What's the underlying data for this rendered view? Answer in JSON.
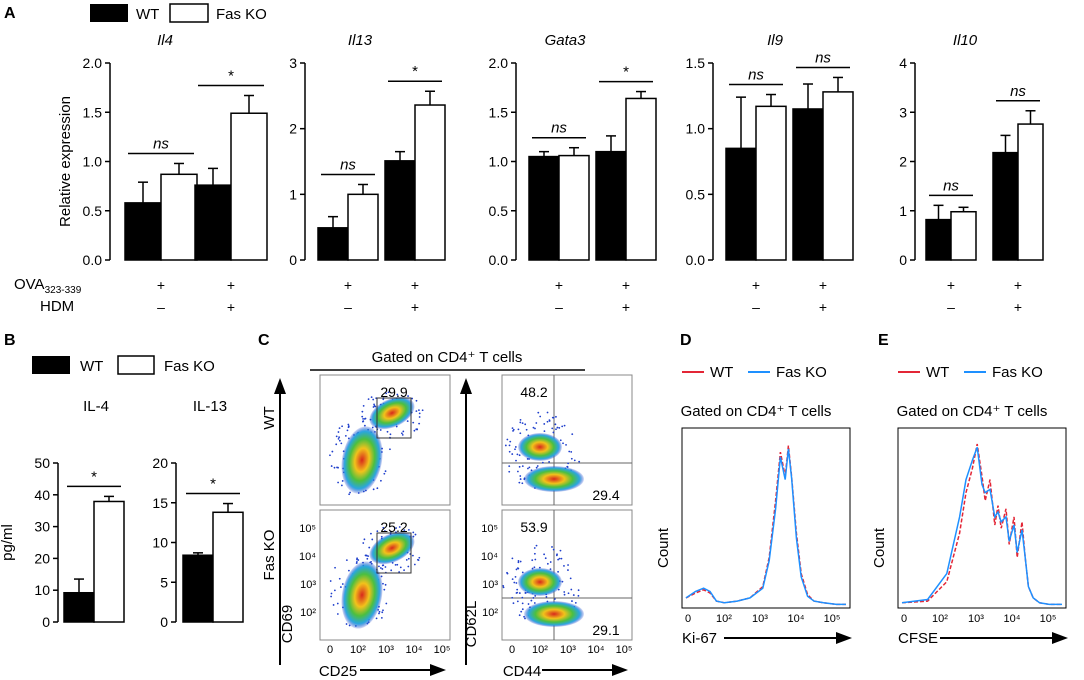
{
  "panels": {
    "A": "A",
    "B": "B",
    "C": "C",
    "D": "D",
    "E": "E"
  },
  "legend_bar": {
    "wt": "WT",
    "ko": "Fas KO"
  },
  "legend_line": {
    "wt": "WT",
    "ko": "Fas KO",
    "wt_color": "#e32636",
    "ko_color": "#1e90ff"
  },
  "colors": {
    "wt_bar": "#000000",
    "ko_bar": "#ffffff",
    "density_low": "#1f3fcc",
    "density_high": "#d8281c"
  },
  "panel_a_conditions": {
    "row1_label": "OVA",
    "row1_sub": "323-339",
    "row2_label": "HDM",
    "row1_marks": [
      "+",
      "+"
    ],
    "row2_marks": [
      "–",
      "+"
    ]
  },
  "chart_data": [
    {
      "type": "bar",
      "panel": "A",
      "title": "Il4",
      "ylabel": "Relative expression",
      "ylim": [
        0,
        2.0
      ],
      "ticks": [
        "0.0",
        "0.5",
        "1.0",
        "1.5",
        "2.0"
      ],
      "tick_values": [
        0,
        0.5,
        1.0,
        1.5,
        2.0
      ],
      "groups": [
        "OVA only",
        "OVA + HDM"
      ],
      "series": [
        {
          "name": "WT",
          "values": [
            0.58,
            0.76
          ],
          "errors": [
            0.21,
            0.17
          ]
        },
        {
          "name": "Fas KO",
          "values": [
            0.87,
            1.49
          ],
          "errors": [
            0.11,
            0.18
          ]
        }
      ],
      "significance": [
        "ns",
        "*"
      ]
    },
    {
      "type": "bar",
      "panel": "A",
      "title": "Il13",
      "ylabel": "",
      "ylim": [
        0,
        3
      ],
      "ticks": [
        "0",
        "1",
        "2",
        "3"
      ],
      "tick_values": [
        0,
        1,
        2,
        3
      ],
      "groups": [
        "OVA only",
        "OVA + HDM"
      ],
      "series": [
        {
          "name": "WT",
          "values": [
            0.49,
            1.51
          ],
          "errors": [
            0.17,
            0.14
          ]
        },
        {
          "name": "Fas KO",
          "values": [
            1.0,
            2.36
          ],
          "errors": [
            0.15,
            0.21
          ]
        }
      ],
      "significance": [
        "ns",
        "*"
      ]
    },
    {
      "type": "bar",
      "panel": "A",
      "title": "Gata3",
      "ylabel": "",
      "ylim": [
        0,
        2.0
      ],
      "ticks": [
        "0.0",
        "0.5",
        "1.0",
        "1.5",
        "2.0"
      ],
      "tick_values": [
        0,
        0.5,
        1.0,
        1.5,
        2.0
      ],
      "groups": [
        "OVA only",
        "OVA + HDM"
      ],
      "series": [
        {
          "name": "WT",
          "values": [
            1.05,
            1.1
          ],
          "errors": [
            0.05,
            0.16
          ]
        },
        {
          "name": "Fas KO",
          "values": [
            1.06,
            1.64
          ],
          "errors": [
            0.08,
            0.07
          ]
        }
      ],
      "significance": [
        "ns",
        "*"
      ]
    },
    {
      "type": "bar",
      "panel": "A",
      "title": "Il9",
      "ylabel": "",
      "ylim": [
        0,
        1.5
      ],
      "ticks": [
        "0.0",
        "0.5",
        "1.0",
        "1.5"
      ],
      "tick_values": [
        0,
        0.5,
        1.0,
        1.5
      ],
      "groups": [
        "OVA only",
        "OVA + HDM"
      ],
      "series": [
        {
          "name": "WT",
          "values": [
            0.85,
            1.15
          ],
          "errors": [
            0.39,
            0.19
          ]
        },
        {
          "name": "Fas KO",
          "values": [
            1.17,
            1.28
          ],
          "errors": [
            0.09,
            0.11
          ]
        }
      ],
      "significance": [
        "ns",
        "ns"
      ]
    },
    {
      "type": "bar",
      "panel": "A",
      "title": "Il10",
      "ylabel": "",
      "ylim": [
        0,
        4
      ],
      "ticks": [
        "0",
        "1",
        "2",
        "3",
        "4"
      ],
      "tick_values": [
        0,
        1,
        2,
        3,
        4
      ],
      "groups": [
        "OVA only",
        "OVA + HDM"
      ],
      "series": [
        {
          "name": "WT",
          "values": [
            0.82,
            2.18
          ],
          "errors": [
            0.29,
            0.35
          ]
        },
        {
          "name": "Fas KO",
          "values": [
            0.98,
            2.76
          ],
          "errors": [
            0.09,
            0.27
          ]
        }
      ],
      "significance": [
        "ns",
        "ns"
      ]
    },
    {
      "type": "bar",
      "panel": "B",
      "title": "IL-4",
      "ylabel": "pg/ml",
      "ylim": [
        0,
        50
      ],
      "ticks": [
        "0",
        "10",
        "20",
        "30",
        "40",
        "50"
      ],
      "tick_values": [
        0,
        10,
        20,
        30,
        40,
        50
      ],
      "series": [
        {
          "name": "WT",
          "values": [
            9.2
          ],
          "errors": [
            4.3
          ]
        },
        {
          "name": "Fas KO",
          "values": [
            37.9
          ],
          "errors": [
            1.6
          ]
        }
      ],
      "significance": [
        "*"
      ]
    },
    {
      "type": "bar",
      "panel": "B",
      "title": "IL-13",
      "ylabel": "",
      "ylim": [
        0,
        20
      ],
      "ticks": [
        "0",
        "5",
        "10",
        "15",
        "20"
      ],
      "tick_values": [
        0,
        5,
        10,
        15,
        20
      ],
      "series": [
        {
          "name": "WT",
          "values": [
            8.4
          ],
          "errors": [
            0.3
          ]
        },
        {
          "name": "Fas KO",
          "values": [
            13.8
          ],
          "errors": [
            1.1
          ]
        }
      ],
      "significance": [
        "*"
      ]
    },
    {
      "type": "scatter",
      "panel": "C",
      "subtype": "flow-cytometry density",
      "title": "Gated on CD4⁺ T cells",
      "row_labels": [
        "WT",
        "Fas KO"
      ],
      "plots": [
        {
          "row": "WT",
          "xlabel": "CD25",
          "ylabel": "CD69",
          "gate_values": [
            "29.9"
          ]
        },
        {
          "row": "WT",
          "xlabel": "CD44",
          "ylabel": "CD62L",
          "gate_values": [
            "48.2",
            "29.4"
          ]
        },
        {
          "row": "Fas KO",
          "xlabel": "CD25",
          "ylabel": "CD69",
          "gate_values": [
            "25.2"
          ]
        },
        {
          "row": "Fas KO",
          "xlabel": "CD44",
          "ylabel": "CD62L",
          "gate_values": [
            "53.9",
            "29.1"
          ]
        }
      ],
      "x_ticks": [
        "0",
        "10²",
        "10³",
        "10⁴",
        "10⁵"
      ],
      "y_ticks": [
        "10²",
        "10³",
        "10⁴",
        "10⁵"
      ]
    },
    {
      "type": "line",
      "panel": "D",
      "subtype": "histogram",
      "title": "Gated on CD4⁺ T cells",
      "xlabel": "Ki-67",
      "ylabel": "Count",
      "x_ticks": [
        "0",
        "10²",
        "10³",
        "10⁴",
        "10⁵"
      ],
      "series": [
        {
          "name": "WT",
          "x": [
            0,
            0.3,
            0.55,
            0.75,
            0.95,
            1.2,
            1.6,
            2.0,
            2.4,
            2.6,
            2.8,
            2.95,
            3.1,
            3.2,
            3.3,
            3.45,
            3.6,
            3.8,
            4.0,
            4.3,
            4.7,
            5.0
          ],
          "y": [
            0.05,
            0.08,
            0.1,
            0.08,
            0.03,
            0.02,
            0.03,
            0.05,
            0.12,
            0.3,
            0.65,
            0.95,
            0.8,
            0.99,
            0.8,
            0.45,
            0.2,
            0.07,
            0.03,
            0.02,
            0.01,
            0.01
          ]
        },
        {
          "name": "Fas KO",
          "x": [
            0,
            0.3,
            0.55,
            0.75,
            0.95,
            1.2,
            1.6,
            2.0,
            2.4,
            2.6,
            2.8,
            2.95,
            3.1,
            3.2,
            3.3,
            3.45,
            3.6,
            3.8,
            4.0,
            4.3,
            4.7,
            5.0
          ],
          "y": [
            0.05,
            0.09,
            0.11,
            0.09,
            0.03,
            0.02,
            0.03,
            0.05,
            0.11,
            0.28,
            0.6,
            0.92,
            0.78,
            0.97,
            0.79,
            0.42,
            0.18,
            0.06,
            0.03,
            0.02,
            0.01,
            0.01
          ]
        }
      ]
    },
    {
      "type": "line",
      "panel": "E",
      "subtype": "histogram",
      "title": "Gated on CD4⁺ T cells",
      "xlabel": "CFSE",
      "ylabel": "Count",
      "x_ticks": [
        "0",
        "10²",
        "10³",
        "10⁴",
        "10⁵"
      ],
      "series": [
        {
          "name": "WT",
          "x": [
            0,
            0.8,
            1.4,
            1.8,
            2.0,
            2.2,
            2.35,
            2.5,
            2.6,
            2.75,
            2.9,
            3.0,
            3.1,
            3.25,
            3.35,
            3.5,
            3.6,
            3.75,
            3.85,
            3.95,
            4.1,
            4.3,
            4.6,
            5.0
          ],
          "y": [
            0.02,
            0.03,
            0.15,
            0.45,
            0.7,
            0.85,
            1.0,
            0.8,
            0.65,
            0.78,
            0.5,
            0.62,
            0.48,
            0.6,
            0.38,
            0.55,
            0.3,
            0.52,
            0.3,
            0.12,
            0.05,
            0.02,
            0.01,
            0.01
          ]
        },
        {
          "name": "Fas KO",
          "x": [
            0,
            0.8,
            1.4,
            1.8,
            2.0,
            2.2,
            2.35,
            2.5,
            2.6,
            2.75,
            2.9,
            3.0,
            3.1,
            3.25,
            3.35,
            3.5,
            3.6,
            3.75,
            3.85,
            3.95,
            4.1,
            4.3,
            4.6,
            5.0
          ],
          "y": [
            0.02,
            0.04,
            0.2,
            0.55,
            0.78,
            0.9,
            0.98,
            0.75,
            0.7,
            0.72,
            0.55,
            0.58,
            0.52,
            0.55,
            0.4,
            0.5,
            0.33,
            0.47,
            0.3,
            0.12,
            0.05,
            0.02,
            0.01,
            0.01
          ]
        }
      ]
    }
  ]
}
